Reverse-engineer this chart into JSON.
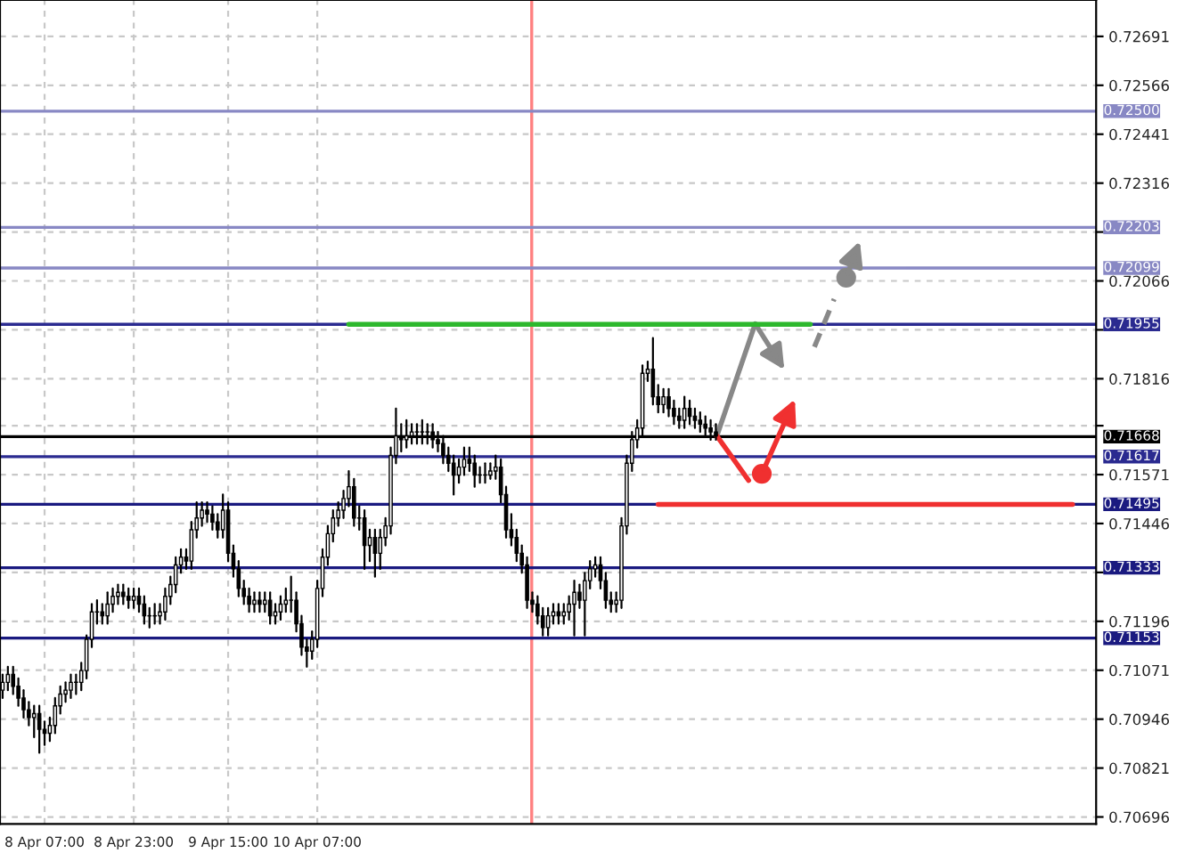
{
  "chart_data": {
    "type": "candlestick",
    "categories": [
      null,
      null,
      null,
      null,
      null,
      null,
      null,
      null,
      "8 Apr 07:00",
      null,
      null,
      null,
      null,
      null,
      null,
      null,
      null,
      null,
      null,
      null,
      null,
      null,
      null,
      null,
      null,
      "8 Apr 23:00",
      null,
      null,
      null,
      null,
      null,
      null,
      null,
      null,
      null,
      null,
      null,
      null,
      null,
      null,
      null,
      null,
      null,
      "9 Apr 15:00",
      null,
      null,
      null,
      null,
      null,
      null,
      null,
      null,
      null,
      null,
      null,
      null,
      null,
      null,
      null,
      null,
      "10 Apr 07:00",
      null,
      null,
      null,
      null,
      null,
      null,
      null,
      null,
      null,
      null,
      null,
      null,
      null,
      null,
      null,
      null,
      null,
      null,
      null,
      null,
      null,
      null,
      null,
      null,
      null,
      null,
      null,
      null,
      null,
      null,
      null,
      null,
      null,
      null,
      null,
      null,
      null,
      null,
      null,
      null,
      null,
      null,
      null,
      null,
      null,
      null,
      null,
      null,
      null,
      null,
      null,
      null,
      null,
      null,
      null,
      null,
      null,
      null,
      null,
      null,
      null,
      null,
      null,
      null,
      null,
      null,
      null,
      null,
      null,
      null,
      null,
      null,
      null,
      null,
      null,
      null,
      null,
      null,
      null,
      null,
      null,
      null,
      null,
      null,
      null,
      null,
      null,
      null,
      null,
      null,
      null,
      null,
      null,
      null,
      null,
      null,
      null,
      null,
      null,
      null,
      null,
      null,
      null,
      null,
      null,
      null,
      null,
      null,
      null,
      null,
      null,
      null,
      null,
      null,
      null,
      null,
      null,
      null,
      null,
      null,
      null,
      null,
      null,
      null,
      null,
      null,
      null,
      null,
      null,
      null,
      null,
      null,
      null,
      null,
      null,
      null,
      null,
      null,
      null,
      null,
      null,
      null,
      null,
      null,
      null,
      null,
      null,
      null
    ],
    "ohlc": [
      [
        0.7102,
        0.7106,
        0.71,
        0.7104
      ],
      [
        0.7104,
        0.7108,
        0.7102,
        0.7106
      ],
      [
        0.7106,
        0.7108,
        0.7101,
        0.7103
      ],
      [
        0.7103,
        0.7105,
        0.7098,
        0.71
      ],
      [
        0.71,
        0.7102,
        0.7095,
        0.7097
      ],
      [
        0.7097,
        0.7099,
        0.7093,
        0.7095
      ],
      [
        0.7095,
        0.7098,
        0.709,
        0.7096
      ],
      [
        0.7096,
        0.7098,
        0.7086,
        0.7092
      ],
      [
        0.7092,
        0.7094,
        0.7088,
        0.7091
      ],
      [
        0.7091,
        0.7095,
        0.7089,
        0.7093
      ],
      [
        0.7093,
        0.71,
        0.7091,
        0.7098
      ],
      [
        0.7098,
        0.7103,
        0.7096,
        0.7101
      ],
      [
        0.7101,
        0.7104,
        0.7099,
        0.7102
      ],
      [
        0.7102,
        0.7106,
        0.71,
        0.7104
      ],
      [
        0.7104,
        0.7106,
        0.7101,
        0.7104
      ],
      [
        0.7104,
        0.7109,
        0.7102,
        0.7107
      ],
      [
        0.7107,
        0.7116,
        0.7105,
        0.7115
      ],
      [
        0.7115,
        0.7124,
        0.7113,
        0.7122
      ],
      [
        0.7122,
        0.7125,
        0.7119,
        0.7122
      ],
      [
        0.7122,
        0.7124,
        0.7119,
        0.7121
      ],
      [
        0.7121,
        0.7127,
        0.7119,
        0.7124
      ],
      [
        0.7124,
        0.7128,
        0.7122,
        0.7126
      ],
      [
        0.7126,
        0.7129,
        0.7124,
        0.7127
      ],
      [
        0.7127,
        0.7129,
        0.7124,
        0.7126
      ],
      [
        0.7126,
        0.7128,
        0.7123,
        0.7125
      ],
      [
        0.7125,
        0.7128,
        0.7123,
        0.7126
      ],
      [
        0.7126,
        0.7128,
        0.7122,
        0.7124
      ],
      [
        0.7124,
        0.7126,
        0.7119,
        0.7121
      ],
      [
        0.7121,
        0.7123,
        0.7118,
        0.7121
      ],
      [
        0.7121,
        0.7124,
        0.7119,
        0.7121
      ],
      [
        0.7121,
        0.7124,
        0.7119,
        0.7122
      ],
      [
        0.7122,
        0.7128,
        0.712,
        0.7126
      ],
      [
        0.7126,
        0.7131,
        0.7124,
        0.7129
      ],
      [
        0.7129,
        0.7136,
        0.7127,
        0.7134
      ],
      [
        0.7134,
        0.7138,
        0.7132,
        0.7136
      ],
      [
        0.7136,
        0.7138,
        0.7133,
        0.7135
      ],
      [
        0.7135,
        0.7145,
        0.7133,
        0.7143
      ],
      [
        0.7143,
        0.715,
        0.7141,
        0.7146
      ],
      [
        0.7146,
        0.715,
        0.7144,
        0.7148
      ],
      [
        0.7148,
        0.715,
        0.7145,
        0.7147
      ],
      [
        0.7147,
        0.7149,
        0.7143,
        0.7145
      ],
      [
        0.7145,
        0.7147,
        0.7141,
        0.7143
      ],
      [
        0.7143,
        0.7152,
        0.7141,
        0.7148
      ],
      [
        0.7148,
        0.715,
        0.7135,
        0.7137
      ],
      [
        0.7137,
        0.7139,
        0.7131,
        0.7133
      ],
      [
        0.7133,
        0.7135,
        0.7126,
        0.7128
      ],
      [
        0.7128,
        0.713,
        0.7124,
        0.7126
      ],
      [
        0.7126,
        0.7128,
        0.7122,
        0.7124
      ],
      [
        0.7124,
        0.7127,
        0.7122,
        0.7125
      ],
      [
        0.7125,
        0.7127,
        0.7122,
        0.7124
      ],
      [
        0.7124,
        0.7127,
        0.7122,
        0.7125
      ],
      [
        0.7125,
        0.7127,
        0.7119,
        0.7121
      ],
      [
        0.7121,
        0.7124,
        0.7119,
        0.7122
      ],
      [
        0.7122,
        0.7126,
        0.712,
        0.7124
      ],
      [
        0.7124,
        0.7128,
        0.7122,
        0.7125
      ],
      [
        0.7125,
        0.7131,
        0.7122,
        0.7125
      ],
      [
        0.7125,
        0.7127,
        0.7117,
        0.7119
      ],
      [
        0.7119,
        0.7121,
        0.7111,
        0.7113
      ],
      [
        0.7113,
        0.7115,
        0.7108,
        0.7112
      ],
      [
        0.7112,
        0.7117,
        0.711,
        0.7115
      ],
      [
        0.7115,
        0.713,
        0.7113,
        0.7128
      ],
      [
        0.7128,
        0.7138,
        0.7126,
        0.7136
      ],
      [
        0.7136,
        0.7144,
        0.7134,
        0.7142
      ],
      [
        0.7142,
        0.7148,
        0.714,
        0.7146
      ],
      [
        0.7146,
        0.715,
        0.7144,
        0.7148
      ],
      [
        0.7148,
        0.7153,
        0.7146,
        0.7151
      ],
      [
        0.7151,
        0.7158,
        0.7149,
        0.7154
      ],
      [
        0.7154,
        0.7156,
        0.7144,
        0.7146
      ],
      [
        0.7146,
        0.7149,
        0.7143,
        0.7146
      ],
      [
        0.7146,
        0.7148,
        0.7133,
        0.7139
      ],
      [
        0.7139,
        0.7143,
        0.7135,
        0.7141
      ],
      [
        0.7141,
        0.7143,
        0.7131,
        0.7137
      ],
      [
        0.7137,
        0.7143,
        0.7133,
        0.7141
      ],
      [
        0.7141,
        0.7146,
        0.7139,
        0.7144
      ],
      [
        0.7144,
        0.7164,
        0.7142,
        0.7162
      ],
      [
        0.7162,
        0.7174,
        0.716,
        0.7167
      ],
      [
        0.7167,
        0.717,
        0.7163,
        0.7166
      ],
      [
        0.7166,
        0.7171,
        0.7164,
        0.7167
      ],
      [
        0.7167,
        0.717,
        0.7165,
        0.7168
      ],
      [
        0.7168,
        0.717,
        0.7165,
        0.7168
      ],
      [
        0.7168,
        0.7171,
        0.7165,
        0.7168
      ],
      [
        0.7168,
        0.717,
        0.7165,
        0.7168
      ],
      [
        0.7168,
        0.717,
        0.7164,
        0.7166
      ],
      [
        0.7166,
        0.7168,
        0.7163,
        0.7165
      ],
      [
        0.7165,
        0.7167,
        0.716,
        0.7162
      ],
      [
        0.7162,
        0.7164,
        0.7158,
        0.716
      ],
      [
        0.716,
        0.7162,
        0.7152,
        0.7157
      ],
      [
        0.7157,
        0.7161,
        0.7155,
        0.7159
      ],
      [
        0.7159,
        0.7164,
        0.7157,
        0.7161
      ],
      [
        0.7161,
        0.7164,
        0.7158,
        0.716
      ],
      [
        0.716,
        0.7162,
        0.7154,
        0.7157
      ],
      [
        0.7157,
        0.7159,
        0.7155,
        0.7157
      ],
      [
        0.7157,
        0.716,
        0.7155,
        0.7157
      ],
      [
        0.7157,
        0.716,
        0.7156,
        0.7158
      ],
      [
        0.7158,
        0.7162,
        0.7156,
        0.7159
      ],
      [
        0.7159,
        0.7161,
        0.715,
        0.7152
      ],
      [
        0.7152,
        0.7154,
        0.7141,
        0.7143
      ],
      [
        0.7143,
        0.7147,
        0.7139,
        0.7141
      ],
      [
        0.7141,
        0.7143,
        0.7135,
        0.7137
      ],
      [
        0.7137,
        0.7139,
        0.7132,
        0.7134
      ],
      [
        0.7134,
        0.7136,
        0.7123,
        0.7125
      ],
      [
        0.7125,
        0.7127,
        0.7122,
        0.7124
      ],
      [
        0.7124,
        0.7126,
        0.7119,
        0.7121
      ],
      [
        0.7121,
        0.7123,
        0.7116,
        0.7118
      ],
      [
        0.7118,
        0.7123,
        0.7116,
        0.7121
      ],
      [
        0.7121,
        0.7124,
        0.7119,
        0.7122
      ],
      [
        0.7122,
        0.7124,
        0.7119,
        0.7121
      ],
      [
        0.7121,
        0.7124,
        0.7119,
        0.7122
      ],
      [
        0.7122,
        0.7126,
        0.712,
        0.7124
      ],
      [
        0.7124,
        0.713,
        0.7116,
        0.7127
      ],
      [
        0.7127,
        0.7129,
        0.7123,
        0.7125
      ],
      [
        0.7125,
        0.7132,
        0.7116,
        0.713
      ],
      [
        0.713,
        0.7135,
        0.7128,
        0.7133
      ],
      [
        0.7133,
        0.7136,
        0.7131,
        0.7134
      ],
      [
        0.7134,
        0.7136,
        0.7128,
        0.713
      ],
      [
        0.713,
        0.7132,
        0.7123,
        0.7125
      ],
      [
        0.7125,
        0.7127,
        0.7122,
        0.7124
      ],
      [
        0.7124,
        0.7127,
        0.7122,
        0.7125
      ],
      [
        0.7125,
        0.7146,
        0.7123,
        0.7144
      ],
      [
        0.7144,
        0.7162,
        0.7142,
        0.716
      ],
      [
        0.716,
        0.7168,
        0.7158,
        0.7166
      ],
      [
        0.7166,
        0.7171,
        0.7164,
        0.7169
      ],
      [
        0.7169,
        0.7185,
        0.7167,
        0.7183
      ],
      [
        0.7183,
        0.7186,
        0.7181,
        0.7184
      ],
      [
        0.7184,
        0.7192,
        0.7175,
        0.7177
      ],
      [
        0.7177,
        0.718,
        0.7173,
        0.7175
      ],
      [
        0.7175,
        0.7179,
        0.7173,
        0.7177
      ],
      [
        0.7177,
        0.7179,
        0.7172,
        0.7174
      ],
      [
        0.7174,
        0.7176,
        0.717,
        0.7172
      ],
      [
        0.7172,
        0.7174,
        0.7169,
        0.7171
      ],
      [
        0.7171,
        0.7177,
        0.7169,
        0.7174
      ],
      [
        0.7174,
        0.7176,
        0.717,
        0.7172
      ],
      [
        0.7172,
        0.7174,
        0.7169,
        0.7171
      ],
      [
        0.7171,
        0.7173,
        0.7168,
        0.717
      ],
      [
        0.717,
        0.7172,
        0.7167,
        0.7169
      ],
      [
        0.7169,
        0.7171,
        0.7166,
        0.7168
      ],
      [
        0.7168,
        0.717,
        0.7166,
        0.7167
      ],
      null,
      null,
      null,
      null,
      null,
      null,
      null,
      null,
      null,
      null,
      null,
      null,
      null,
      null,
      null,
      null,
      null,
      null,
      null,
      null,
      null,
      null,
      null,
      null,
      null,
      null,
      null,
      null,
      null,
      null,
      null,
      null,
      null,
      null,
      null,
      null,
      null,
      null,
      null,
      null,
      null,
      null,
      null,
      null,
      null,
      null,
      null,
      null,
      null,
      null,
      null,
      null,
      null,
      null,
      null,
      null,
      null,
      null,
      null,
      null,
      null,
      null,
      null,
      null,
      null,
      null,
      null,
      null,
      null,
      null,
      null,
      null
    ],
    "series": [
      {
        "type": "line",
        "color": "#2db82d",
        "values": [
          null,
          null,
          null,
          null,
          null,
          null,
          null,
          null,
          null,
          null,
          null,
          null,
          null,
          null,
          null,
          null,
          null,
          null,
          null,
          null,
          null,
          null,
          null,
          null,
          null,
          null,
          null,
          null,
          null,
          null,
          null,
          null,
          null,
          null,
          null,
          null,
          null,
          null,
          null,
          null,
          null,
          null,
          null,
          null,
          null,
          null,
          null,
          null,
          null,
          null,
          null,
          null,
          null,
          null,
          null,
          null,
          null,
          null,
          null,
          null,
          null,
          null,
          null,
          null,
          null,
          null,
          0.71955,
          0.71955,
          0.71955,
          0.71955,
          0.71955,
          0.71955,
          0.71955,
          0.71955,
          0.71955,
          0.71955,
          0.71955,
          0.71955,
          0.71955,
          0.71955,
          0.71955,
          0.71955,
          0.71955,
          0.71955,
          0.71955,
          0.71955,
          0.71955,
          0.71955,
          0.71955,
          0.71955,
          0.71955,
          0.71955,
          0.71955,
          0.71955,
          0.71955,
          0.71955,
          0.71955,
          0.71955,
          0.71955,
          0.71955,
          0.71955,
          0.71955,
          0.71955,
          0.71955,
          0.71955,
          0.71955,
          0.71955,
          0.71955,
          0.71955,
          0.71955,
          0.71955,
          0.71955,
          0.71955,
          0.71955,
          0.71955,
          0.71955,
          0.71955,
          0.71955,
          0.71955,
          0.71955,
          0.71955,
          0.71955,
          0.71955,
          0.71955,
          0.71955,
          0.71955,
          0.71955,
          0.71955,
          0.71955,
          0.71955,
          0.71955,
          0.71955,
          0.71955,
          0.71955,
          0.71955,
          0.71955,
          0.71955,
          0.71955,
          0.71955,
          0.71955,
          0.71955,
          0.71955,
          0.71955,
          0.71955,
          0.71955,
          0.71955,
          0.71955,
          0.71955,
          0.71955,
          0.71955,
          0.71955,
          0.71955,
          0.71955,
          0.71955,
          0.71955,
          null,
          null,
          null,
          null,
          null,
          null,
          null,
          null,
          null,
          null,
          null,
          null,
          null,
          null,
          null,
          null,
          null,
          null,
          null,
          null,
          null,
          null,
          null,
          null,
          null,
          null,
          null,
          null,
          null,
          null,
          null,
          null,
          null,
          null,
          null,
          null,
          null,
          null,
          null,
          null,
          null,
          null,
          null,
          null,
          null,
          null,
          null,
          null,
          null,
          null,
          null,
          null,
          null,
          null
        ]
      },
      {
        "type": "line",
        "color": "#f03030",
        "values": [
          null,
          null,
          null,
          null,
          null,
          null,
          null,
          null,
          null,
          null,
          null,
          null,
          null,
          null,
          null,
          null,
          null,
          null,
          null,
          null,
          null,
          null,
          null,
          null,
          null,
          null,
          null,
          null,
          null,
          null,
          null,
          null,
          null,
          null,
          null,
          null,
          null,
          null,
          null,
          null,
          null,
          null,
          null,
          null,
          null,
          null,
          null,
          null,
          null,
          null,
          null,
          null,
          null,
          null,
          null,
          null,
          null,
          null,
          null,
          null,
          null,
          null,
          null,
          null,
          null,
          null,
          null,
          null,
          null,
          null,
          null,
          null,
          null,
          null,
          null,
          null,
          null,
          null,
          null,
          null,
          null,
          null,
          null,
          null,
          null,
          null,
          null,
          null,
          null,
          null,
          null,
          null,
          null,
          null,
          null,
          null,
          null,
          null,
          null,
          null,
          null,
          null,
          null,
          null,
          null,
          null,
          null,
          null,
          null,
          null,
          null,
          null,
          null,
          null,
          null,
          null,
          null,
          null,
          null,
          null,
          null,
          null,
          null,
          null,
          null,
          0.71495,
          0.71495,
          0.71495,
          0.71495,
          0.71495,
          0.71495,
          0.71495,
          0.71495,
          0.71495,
          0.71495,
          0.71495,
          0.71495,
          0.71495,
          0.71495,
          0.71495,
          0.71495,
          0.71495,
          0.71495,
          0.71495,
          0.71495,
          0.71495,
          0.71495,
          0.71495,
          0.71495,
          0.71495,
          0.71495,
          0.71495,
          0.71495,
          0.71495,
          0.71495,
          0.71495,
          0.71495,
          0.71495,
          0.71495,
          0.71495,
          0.71495,
          0.71495,
          0.71495,
          0.71495,
          0.71495,
          0.71495,
          0.71495,
          0.71495,
          0.71495,
          0.71495,
          0.71495,
          0.71495,
          0.71495,
          0.71495,
          0.71495,
          0.71495,
          0.71495,
          0.71495,
          0.71495,
          0.71495,
          0.71495,
          0.71495,
          0.71495,
          0.71495,
          0.71495,
          0.71495,
          0.71495,
          0.71495,
          0.71495,
          0.71495,
          0.71495,
          0.71495,
          0.71495,
          0.71495,
          0.71495,
          0.71495,
          0.71495,
          0.71495,
          0.71495,
          0.71495,
          0.71495,
          0.71495,
          0.71495,
          0.71495,
          0.71495,
          null,
          null,
          null,
          null
        ]
      }
    ],
    "ylim": [
      0.70678,
      0.72784
    ],
    "yticks": [
      0.70696,
      0.70821,
      0.70946,
      0.71071,
      0.71196,
      {
        "value": 0.71321,
        "label": null
      },
      0.71446,
      0.71571,
      {
        "value": 0.71696,
        "label": null
      },
      0.71816,
      {
        "value": 0.71941,
        "label": null
      },
      0.72066,
      {
        "value": 0.72191,
        "label": null
      },
      0.72316,
      0.72441,
      0.72566,
      0.72691
    ],
    "grid": true,
    "ref_lines": [
      {
        "axis": "y",
        "value": 0.725,
        "label": "0.72500",
        "color": "#8888c4"
      },
      {
        "axis": "y",
        "value": 0.72203,
        "label": "0.72203",
        "color": "#8888c4"
      },
      {
        "axis": "y",
        "value": 0.72099,
        "label": "0.72099",
        "color": "#8888c4"
      },
      {
        "axis": "y",
        "value": 0.71955,
        "label": "0.71955",
        "color": "#2a2a90"
      },
      {
        "axis": "y",
        "value": 0.71668,
        "label": "0.71668",
        "color": "#000000"
      },
      {
        "axis": "y",
        "value": 0.71617,
        "label": "0.71617",
        "color": "#2a2a90"
      },
      {
        "axis": "y",
        "value": 0.71495,
        "label": "0.71495",
        "color": "#1a1a80"
      },
      {
        "axis": "y",
        "value": 0.71333,
        "label": "0.71333",
        "color": "#1a1a80"
      },
      {
        "axis": "y",
        "value": 0.71153,
        "label": "0.71153",
        "color": "#1a1a80"
      }
    ]
  }
}
